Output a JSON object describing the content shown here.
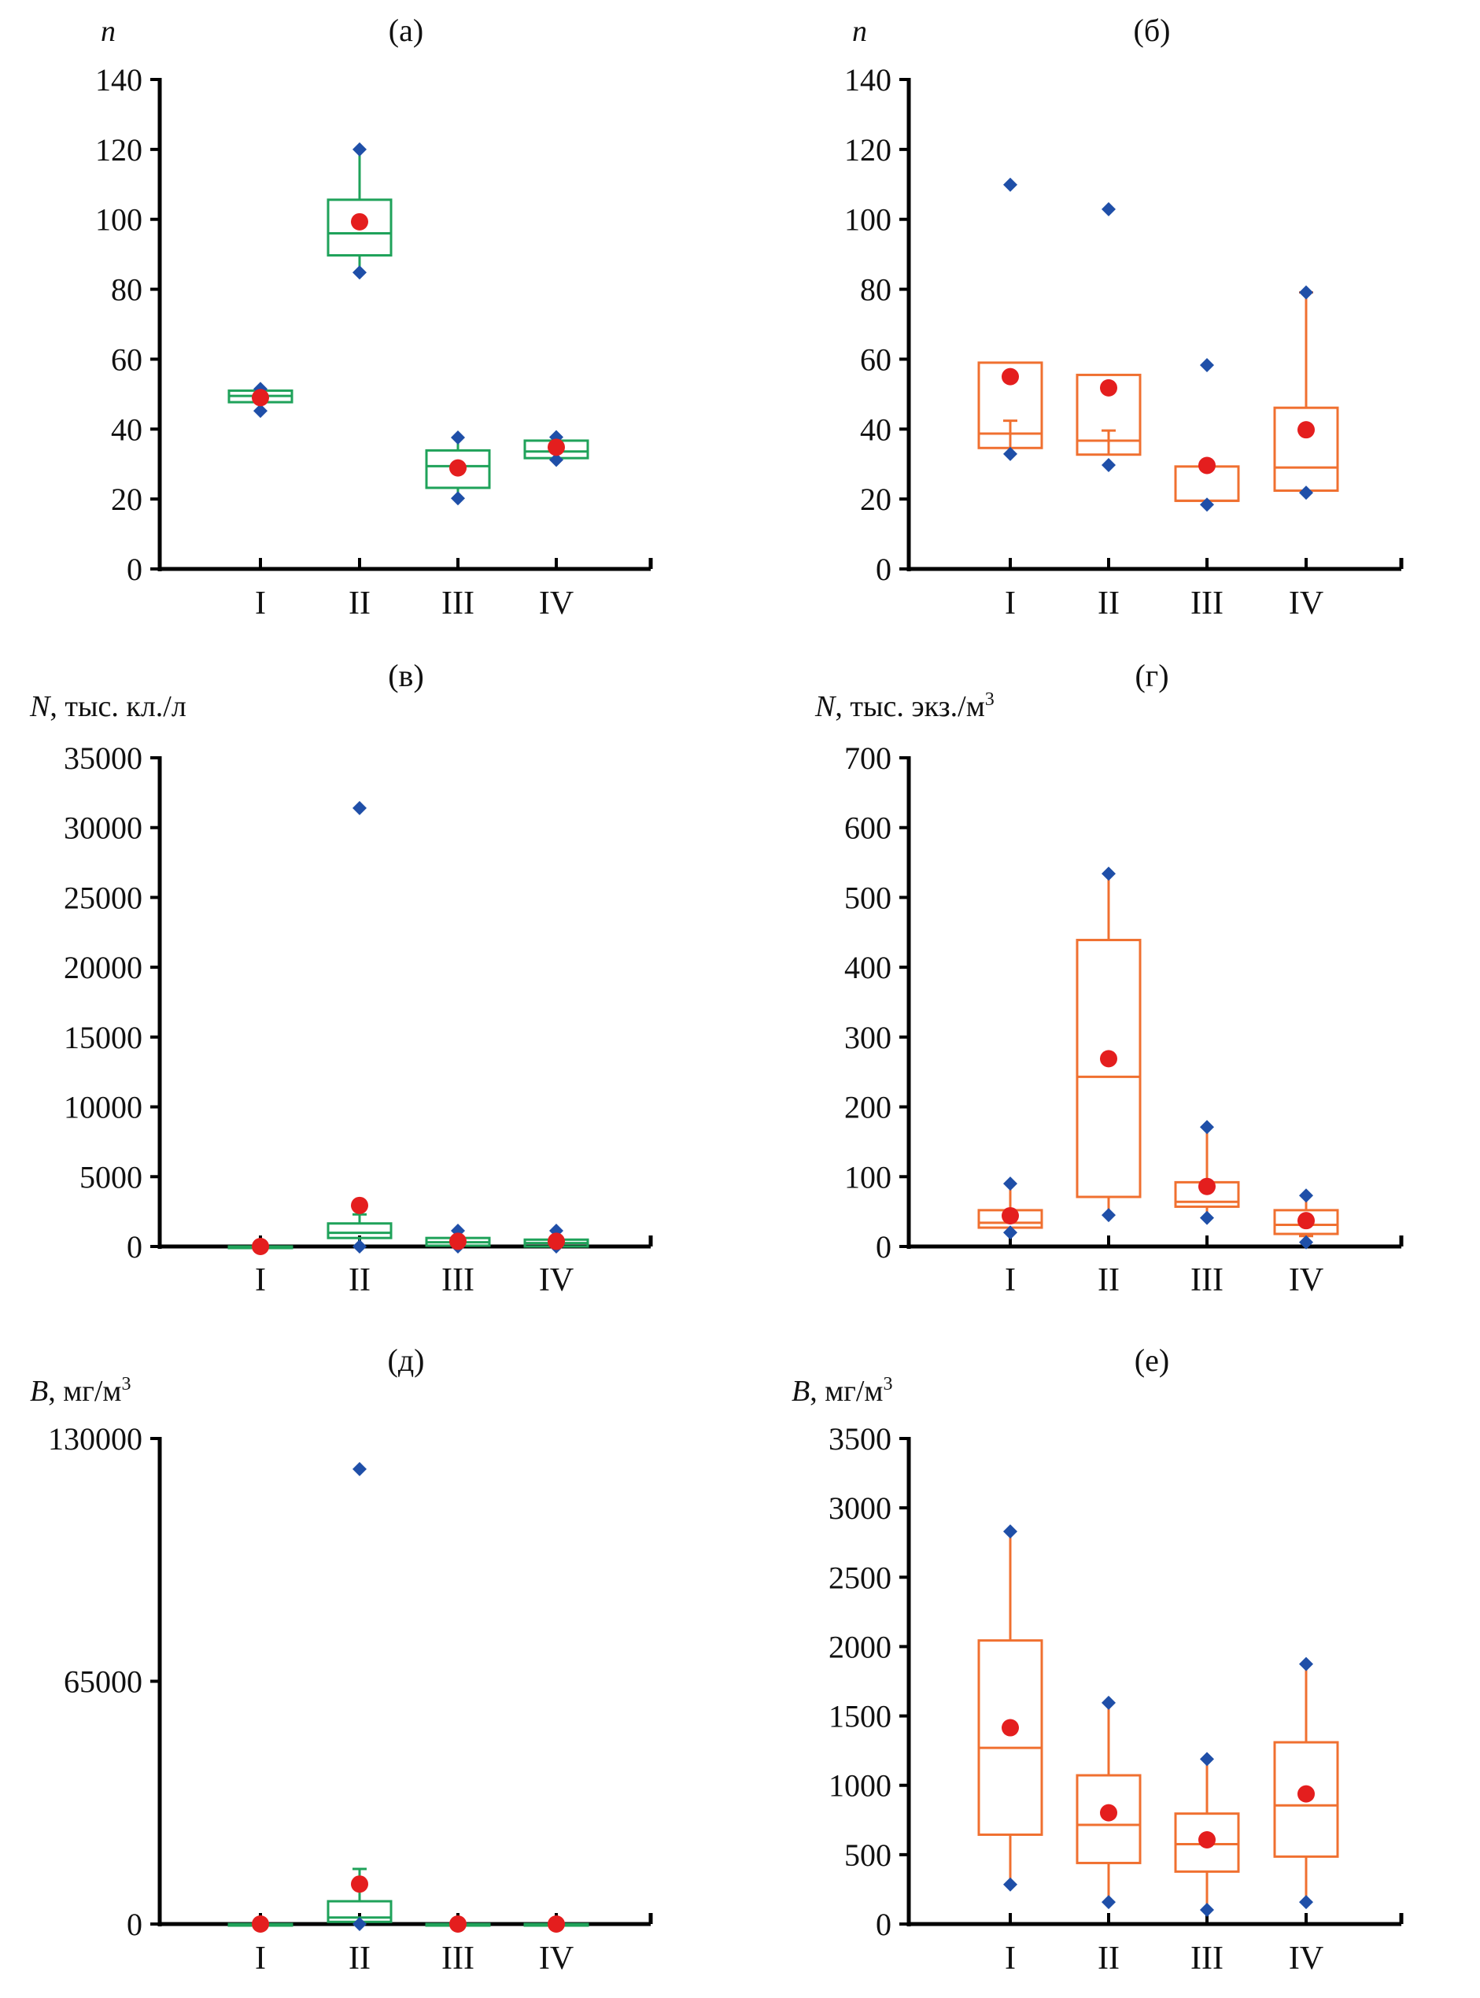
{
  "figure": {
    "colors": {
      "box_green": "#1fa25a",
      "box_orange": "#f07030",
      "outlier_blue": "#1f4fa8",
      "mean_red": "#e41e1e",
      "axis": "#000000"
    }
  },
  "chart_data": [
    {
      "id": "a",
      "type": "box",
      "title": "(а)",
      "ylabel_var": "n",
      "ylabel_unit": "",
      "box_color": "green",
      "categories": [
        "I",
        "II",
        "III",
        "IV"
      ],
      "ylim": [
        0,
        140
      ],
      "yticks": [
        0,
        20,
        40,
        60,
        80,
        100,
        120,
        140
      ],
      "series": [
        {
          "category": "I",
          "min": 45.2,
          "q1": 47.7,
          "median": 49.5,
          "q3": 51,
          "max": 51.5,
          "mean": 49
        },
        {
          "category": "II",
          "min": 84.8,
          "q1": 89.7,
          "median": 96,
          "q3": 105.6,
          "max": 120,
          "mean": 99.3
        },
        {
          "category": "III",
          "min": 20.2,
          "q1": 23.2,
          "median": 29.4,
          "q3": 33.9,
          "max": 37.6,
          "mean": 28.9
        },
        {
          "category": "IV",
          "min": 31.2,
          "q1": 31.7,
          "median": 33.6,
          "q3": 36.7,
          "max": 37.7,
          "mean": 34.8
        }
      ]
    },
    {
      "id": "b",
      "type": "box",
      "title": "(б)",
      "ylabel_var": "n",
      "ylabel_unit": "",
      "box_color": "orange",
      "categories": [
        "I",
        "II",
        "III",
        "IV"
      ],
      "ylim": [
        0,
        140
      ],
      "yticks": [
        0,
        20,
        40,
        60,
        80,
        100,
        120,
        140
      ],
      "series": [
        {
          "category": "I",
          "min": 32.9,
          "q1": 34.6,
          "median": 38.7,
          "q3": 59,
          "max": 109.9,
          "mean": 55,
          "whisker_low": 42.4,
          "whisker_high": 59
        },
        {
          "category": "II",
          "min": 29.7,
          "q1": 32.7,
          "median": 36.7,
          "q3": 55.5,
          "max": 102.9,
          "mean": 51.8,
          "whisker_low": 39.6,
          "whisker_high": 55.5
        },
        {
          "category": "III",
          "min": 18.4,
          "q1": 19.5,
          "median": 19.5,
          "q3": 29.3,
          "max": 58.3,
          "mean": 29.6,
          "whisker_low": 19.5,
          "whisker_high": 29.6
        },
        {
          "category": "IV",
          "min": 21.8,
          "q1": 22.4,
          "median": 29,
          "q3": 46.1,
          "max": 79.1,
          "mean": 39.8,
          "whisker_low": 22.4,
          "whisker_high": 79.1
        }
      ]
    },
    {
      "id": "c",
      "type": "box",
      "title": "(в)",
      "ylabel_var": "N",
      "ylabel_unit": ", тыс. кл./л",
      "box_color": "green",
      "categories": [
        "I",
        "II",
        "III",
        "IV"
      ],
      "ylim": [
        0,
        35000
      ],
      "yticks": [
        0,
        5000,
        10000,
        15000,
        20000,
        25000,
        30000,
        35000
      ],
      "series": [
        {
          "category": "I",
          "min": 0,
          "q1": 0,
          "median": 0,
          "q3": 0,
          "max": 0,
          "mean": 0
        },
        {
          "category": "II",
          "min": 0,
          "q1": 610,
          "median": 980,
          "q3": 1650,
          "max": 31400,
          "mean": 2940,
          "whisker_high": 2300
        },
        {
          "category": "III",
          "min": 0,
          "q1": 60,
          "median": 300,
          "q3": 610,
          "max": 1130,
          "mean": 370
        },
        {
          "category": "IV",
          "min": 0,
          "q1": 0,
          "median": 245,
          "q3": 490,
          "max": 1130,
          "mean": 370
        }
      ]
    },
    {
      "id": "d",
      "type": "box",
      "title": "(г)",
      "ylabel_var": "N",
      "ylabel_unit": ", тыс. экз./м",
      "ylabel_sup": "3",
      "box_color": "orange",
      "categories": [
        "I",
        "II",
        "III",
        "IV"
      ],
      "ylim": [
        0,
        700
      ],
      "yticks": [
        0,
        100,
        200,
        300,
        400,
        500,
        600,
        700
      ],
      "series": [
        {
          "category": "I",
          "min": 20,
          "q1": 27,
          "median": 34,
          "q3": 52,
          "max": 90,
          "mean": 44
        },
        {
          "category": "II",
          "min": 45,
          "q1": 71,
          "median": 243,
          "q3": 439,
          "max": 534,
          "mean": 269
        },
        {
          "category": "III",
          "min": 41,
          "q1": 57,
          "median": 64,
          "q3": 92,
          "max": 171,
          "mean": 86
        },
        {
          "category": "IV",
          "min": 6,
          "q1": 18,
          "median": 31,
          "q3": 52,
          "max": 73,
          "mean": 37,
          "whisker_low": 15
        }
      ]
    },
    {
      "id": "e",
      "type": "box",
      "title": "(д)",
      "ylabel_var": "B",
      "ylabel_unit": ", мг/м",
      "ylabel_sup": "3",
      "box_color": "green",
      "categories": [
        "I",
        "II",
        "III",
        "IV"
      ],
      "ylim": [
        0,
        130000
      ],
      "yticks": [
        0,
        65000,
        130000
      ],
      "series": [
        {
          "category": "I",
          "min": 0,
          "q1": 0,
          "median": 0,
          "q3": 0,
          "max": 0,
          "mean": 0
        },
        {
          "category": "II",
          "min": 0,
          "q1": 580,
          "median": 1730,
          "q3": 6100,
          "max": 121800,
          "mean": 10700,
          "whisker_high": 14750
        },
        {
          "category": "III",
          "min": 0,
          "q1": 0,
          "median": 0,
          "q3": 0,
          "max": 0,
          "mean": 0
        },
        {
          "category": "IV",
          "min": 0,
          "q1": 0,
          "median": 0,
          "q3": 0,
          "max": 0,
          "mean": 0
        }
      ]
    },
    {
      "id": "f",
      "type": "box",
      "title": "(е)",
      "ylabel_var": "B",
      "ylabel_unit": ", мг/м",
      "ylabel_sup": "3",
      "box_color": "orange",
      "categories": [
        "I",
        "II",
        "III",
        "IV"
      ],
      "ylim": [
        0,
        3500
      ],
      "yticks": [
        0,
        500,
        1000,
        1500,
        2000,
        2500,
        3000,
        3500
      ],
      "series": [
        {
          "category": "I",
          "min": 285,
          "q1": 644,
          "median": 1270,
          "q3": 2044,
          "max": 2830,
          "mean": 1415
        },
        {
          "category": "II",
          "min": 158,
          "q1": 440,
          "median": 715,
          "q3": 1072,
          "max": 1595,
          "mean": 802
        },
        {
          "category": "III",
          "min": 102,
          "q1": 378,
          "median": 576,
          "q3": 796,
          "max": 1189,
          "mean": 607
        },
        {
          "category": "IV",
          "min": 158,
          "q1": 486,
          "median": 855,
          "q3": 1310,
          "max": 1874,
          "mean": 938
        }
      ]
    }
  ]
}
